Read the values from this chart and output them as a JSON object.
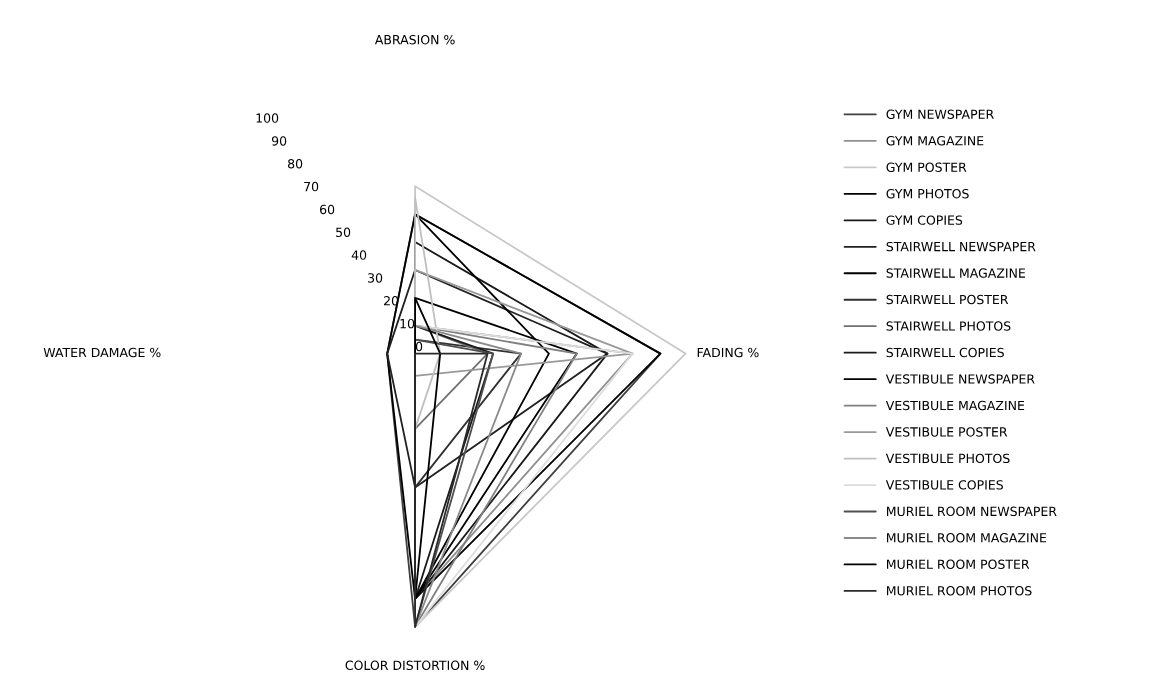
{
  "chart_data": {
    "type": "radar",
    "categories": [
      "ABRASION %",
      "FADING %",
      "COLOR DISTORTION %",
      "WATER DAMAGE %"
    ],
    "ylim": [
      0,
      100
    ],
    "yticks": [
      0,
      10,
      20,
      30,
      40,
      50,
      60,
      70,
      80,
      90,
      100
    ],
    "grid": false,
    "legend": "right",
    "series": [
      {
        "name": "GYM NEWSPAPER",
        "color": "#404040",
        "values": [
          50,
          88,
          98,
          10
        ]
      },
      {
        "name": "GYM MAGAZINE",
        "color": "#909090",
        "values": [
          10,
          78,
          88,
          0
        ]
      },
      {
        "name": "GYM POSTER",
        "color": "#c8c8c8",
        "values": [
          60,
          97,
          98,
          0
        ]
      },
      {
        "name": "GYM PHOTOS",
        "color": "#000000",
        "values": [
          50,
          88,
          88,
          10
        ]
      },
      {
        "name": "GYM COPIES",
        "color": "#1a1a1a",
        "values": [
          40,
          69,
          88,
          0
        ]
      },
      {
        "name": "STAIRWELL NEWSPAPER",
        "color": "#202020",
        "values": [
          30,
          69,
          48,
          10
        ]
      },
      {
        "name": "STAIRWELL MAGAZINE",
        "color": "#000000",
        "values": [
          20,
          58,
          88,
          0
        ]
      },
      {
        "name": "STAIRWELL POSTER",
        "color": "#303030",
        "values": [
          5,
          38,
          48,
          0
        ]
      },
      {
        "name": "STAIRWELL PHOTOS",
        "color": "#707070",
        "values": [
          10,
          26,
          27,
          0
        ]
      },
      {
        "name": "STAIRWELL COPIES",
        "color": "#1a1a1a",
        "values": [
          10,
          28,
          88,
          0
        ]
      },
      {
        "name": "VESTIBULE NEWSPAPER",
        "color": "#000000",
        "values": [
          50,
          48,
          88,
          0
        ]
      },
      {
        "name": "VESTIBULE MAGAZINE",
        "color": "#808080",
        "values": [
          10,
          58,
          98,
          0
        ]
      },
      {
        "name": "VESTIBULE POSTER",
        "color": "#999999",
        "values": [
          30,
          78,
          8,
          0
        ]
      },
      {
        "name": "VESTIBULE PHOTOS",
        "color": "#c0c0c0",
        "values": [
          56,
          9,
          27,
          0
        ]
      },
      {
        "name": "VESTIBULE COPIES",
        "color": "#dddddd",
        "values": [
          10,
          78,
          98,
          0
        ]
      },
      {
        "name": "MURIEL ROOM NEWSPAPER",
        "color": "#505050",
        "values": [
          5,
          28,
          98,
          0
        ]
      },
      {
        "name": "MURIEL ROOM MAGAZINE",
        "color": "#8a8a8a",
        "values": [
          10,
          38,
          98,
          0
        ]
      },
      {
        "name": "MURIEL ROOM POSTER",
        "color": "#000000",
        "values": [
          20,
          9,
          88,
          0
        ]
      },
      {
        "name": "MURIEL ROOM PHOTOS",
        "color": "#2a2a2a",
        "values": [
          0,
          26,
          98,
          0
        ]
      }
    ]
  }
}
